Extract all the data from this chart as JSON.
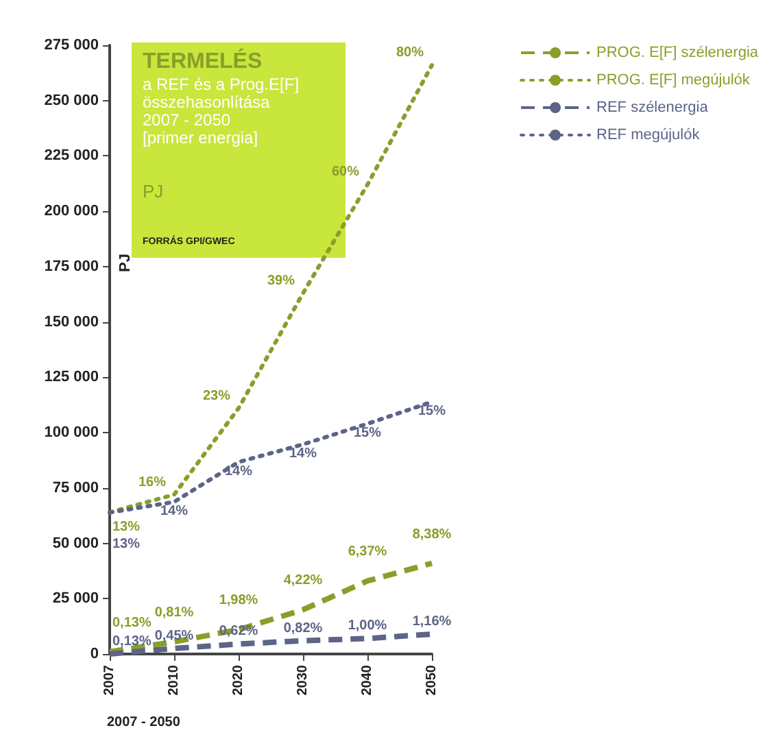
{
  "chart_data": {
    "type": "line",
    "title": "TERMELÉS",
    "subtitle": "a REF és a Prog.E[F]\nösszehasonlítása\n2007 - 2050\n[primer energia]",
    "xlabel": "2007 - 2050",
    "ylabel": "PJ",
    "annotations": [
      "PJ",
      "FORRÁS GPI/GWEC",
      {
        "text": "0,13%",
        "x": "2007",
        "y": 1000
      },
      {
        "text": "0,81%",
        "x": "2010",
        "y": 5500
      },
      {
        "text": "1,98%",
        "x": "2020",
        "y": 11000
      },
      {
        "text": "4,22%",
        "x": "2030",
        "y": 20000
      },
      {
        "text": "6,37%",
        "x": "2040",
        "y": 33000
      },
      {
        "text": "8,38%",
        "x": "2050",
        "y": 41000
      },
      {
        "text": "13%",
        "x": "2007",
        "y": 64000
      },
      {
        "text": "16%",
        "x": "2010",
        "y": 72000
      },
      {
        "text": "23%",
        "x": "2020",
        "y": 111000
      },
      {
        "text": "39%",
        "x": "2030",
        "y": 163000
      },
      {
        "text": "60%",
        "x": "2040",
        "y": 212000
      },
      {
        "text": "80%",
        "x": "2050",
        "y": 266000
      },
      {
        "text": "0,13%",
        "x": "2007",
        "y": 0
      },
      {
        "text": "0,45%",
        "x": "2010",
        "y": 2500
      },
      {
        "text": "0,62%",
        "x": "2020",
        "y": 4500
      },
      {
        "text": "0,82%",
        "x": "2030",
        "y": 6000
      },
      {
        "text": "1,00%",
        "x": "2040",
        "y": 7000
      },
      {
        "text": "1,16%",
        "x": "2050",
        "y": 9000
      },
      {
        "text": "13%",
        "x": "2007",
        "y": 63900
      },
      {
        "text": "14%",
        "x": "2010",
        "y": 68700
      },
      {
        "text": "14%",
        "x": "2020",
        "y": 86700
      },
      {
        "text": "14%",
        "x": "2030",
        "y": 94700
      },
      {
        "text": "15%",
        "x": "2040",
        "y": 104000
      },
      {
        "text": "15%",
        "x": "2050",
        "y": 113900
      }
    ],
    "categories": [
      "2007",
      "2010",
      "2020",
      "2030",
      "2040",
      "2050"
    ],
    "series": [
      {
        "name": "PROG. E[F] szélenergia",
        "color": "#8a9e2a",
        "line_style": "dashed",
        "values": [
          1000,
          5500,
          11000,
          20000,
          33000,
          41000
        ]
      },
      {
        "name": "PROG. E[F] megújulók",
        "color": "#8a9e2a",
        "line_style": "dotted",
        "values": [
          64000,
          72000,
          111000,
          163000,
          212000,
          266000
        ]
      },
      {
        "name": "REF szélenergia",
        "color": "#5c6488",
        "line_style": "dashed",
        "values": [
          0,
          2500,
          4500,
          6000,
          7000,
          9000
        ]
      },
      {
        "name": "REF megújulók",
        "color": "#5c6488",
        "line_style": "dotted",
        "values": [
          63900,
          68700,
          86700,
          94700,
          104000,
          113900
        ]
      }
    ],
    "ylim": [
      0,
      275000
    ],
    "yticks": [
      {
        "value": 0,
        "label": "0"
      },
      {
        "value": 25000,
        "label": "25 000"
      },
      {
        "value": 50000,
        "label": "50 000"
      },
      {
        "value": 75000,
        "label": "75 000"
      },
      {
        "value": 100000,
        "label": "100 000"
      },
      {
        "value": 125000,
        "label": "125 000"
      },
      {
        "value": 150000,
        "label": "150 000"
      },
      {
        "value": 175000,
        "label": "175 000"
      },
      {
        "value": 200000,
        "label": "200 000"
      },
      {
        "value": 225000,
        "label": "225 000"
      },
      {
        "value": 250000,
        "label": "250 000"
      },
      {
        "value": 275000,
        "label": "275 000"
      }
    ],
    "grid": false,
    "legend": "top right",
    "marker": "none"
  }
}
